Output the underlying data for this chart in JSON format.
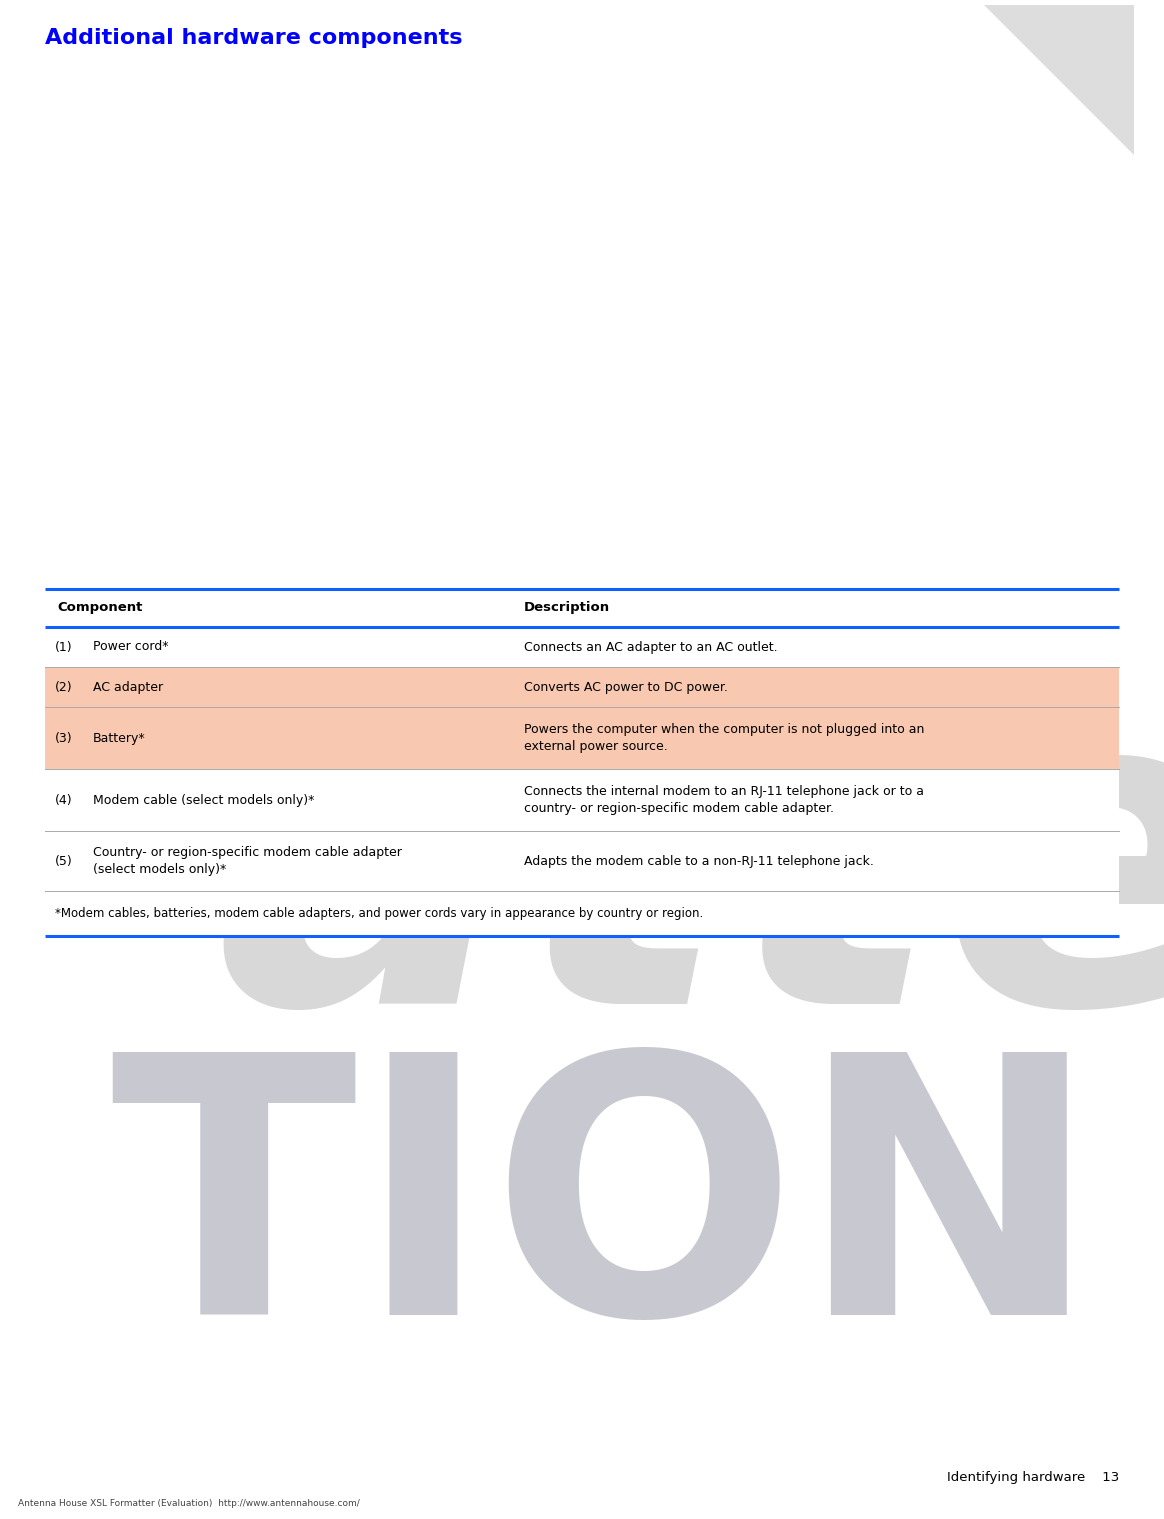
{
  "title": "Additional hardware components",
  "title_color": "#0000FF",
  "title_fontsize": 16,
  "bg_color": "#FFFFFF",
  "table_row_highlight_color": "#F9C8B0",
  "table_border_color": "#1060FF",
  "header_row": [
    "Component",
    "Description"
  ],
  "rows": [
    {
      "num": "(1)",
      "component": "Power cord*",
      "description": "Connects an AC adapter to an AC outlet.",
      "highlight": false,
      "desc_lines": 1
    },
    {
      "num": "(2)",
      "component": "AC adapter",
      "description": "Converts AC power to DC power.",
      "highlight": true,
      "desc_lines": 1
    },
    {
      "num": "(3)",
      "component": "Battery*",
      "description": "Powers the computer when the computer is not plugged into an\nexternal power source.",
      "highlight": true,
      "desc_lines": 2
    },
    {
      "num": "(4)",
      "component": "Modem cable (select models only)*",
      "description": "Connects the internal modem to an RJ-11 telephone jack or to a\ncountry- or region-specific modem cable adapter.",
      "highlight": false,
      "desc_lines": 2
    },
    {
      "num": "(5)",
      "component": "Country- or region-specific modem cable adapter\n(select models only)*",
      "description": "Adapts the modem cable to a non-RJ-11 telephone jack.",
      "highlight": false,
      "desc_lines": 1
    }
  ],
  "footnote": "*Modem cables, batteries, modem cable adapters, and power cords vary in appearance by country or region.",
  "footer_right": "Identifying hardware",
  "footer_pagenum": "13",
  "footer_small": "Antenna House XSL Formatter (Evaluation)  http://www.antennahouse.com/"
}
